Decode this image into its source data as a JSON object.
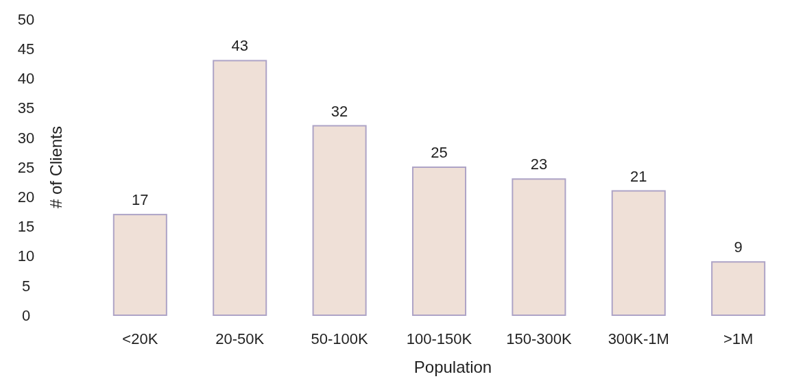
{
  "chart_data": {
    "type": "bar",
    "xlabel": "Population",
    "ylabel": "# of Clients",
    "categories": [
      "<20K",
      "20-50K",
      "50-100K",
      "100-150K",
      "150-300K",
      "300K-1M",
      ">1M"
    ],
    "values": [
      17,
      43,
      32,
      25,
      23,
      21,
      9
    ],
    "color": "#efe0d7",
    "ylim": [
      0,
      50
    ],
    "yticks": [
      0,
      5,
      10,
      15,
      20,
      25,
      30,
      35,
      40,
      45,
      50
    ],
    "grid": false,
    "data_labels": true
  }
}
